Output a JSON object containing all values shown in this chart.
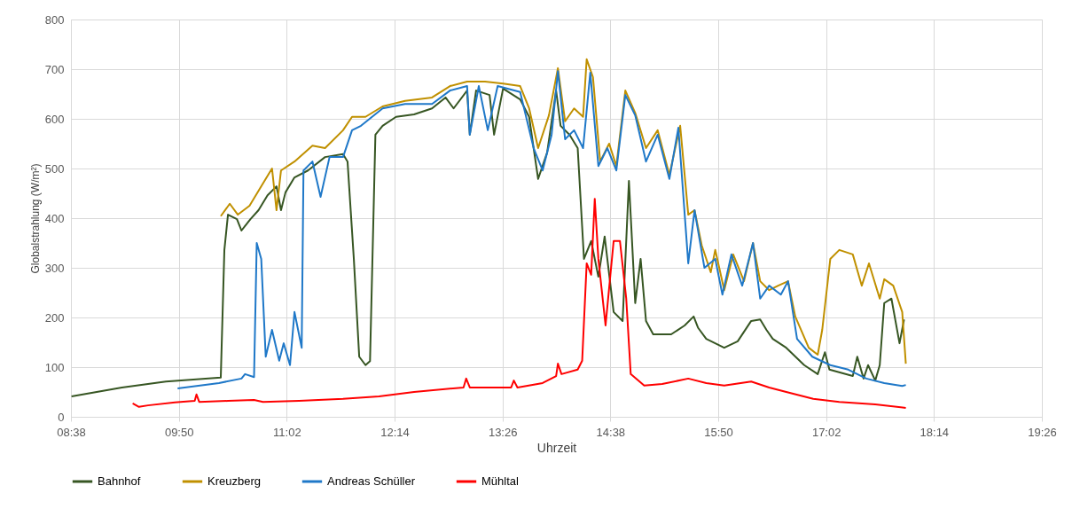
{
  "chart_data": {
    "type": "line",
    "xlabel": "Uhrzeit",
    "ylabel": "Globalstrahlung (W/m²)",
    "xlim": [
      8.6333,
      19.4333
    ],
    "xticks": [
      {
        "value": 8.6333,
        "label": "08:38"
      },
      {
        "value": 9.8333,
        "label": "09:50"
      },
      {
        "value": 11.0333,
        "label": "11:02"
      },
      {
        "value": 12.2333,
        "label": "12:14"
      },
      {
        "value": 13.4333,
        "label": "13:26"
      },
      {
        "value": 14.6333,
        "label": "14:38"
      },
      {
        "value": 15.8333,
        "label": "15:50"
      },
      {
        "value": 17.0333,
        "label": "17:02"
      },
      {
        "value": 18.2333,
        "label": "18:14"
      },
      {
        "value": 19.4333,
        "label": "19:26"
      }
    ],
    "ylim": [
      0,
      800
    ],
    "yticks": [
      0,
      100,
      200,
      300,
      400,
      500,
      600,
      700,
      800
    ],
    "grid": true,
    "legend": "bottom",
    "series": [
      {
        "name": "Bahnhof",
        "color": "#375623",
        "x": [
          8.64,
          9.2,
          9.69,
          10.3,
          10.34,
          10.38,
          10.48,
          10.53,
          10.63,
          10.72,
          10.82,
          10.92,
          10.97,
          11.02,
          11.12,
          11.27,
          11.46,
          11.66,
          11.71,
          11.78,
          11.84,
          11.91,
          11.96,
          12.02,
          12.1,
          12.25,
          12.45,
          12.65,
          12.8,
          12.89,
          13.04,
          13.07,
          13.14,
          13.29,
          13.34,
          13.44,
          13.63,
          13.73,
          13.78,
          13.83,
          13.93,
          14.03,
          14.08,
          14.18,
          14.27,
          14.34,
          14.42,
          14.5,
          14.57,
          14.67,
          14.77,
          14.84,
          14.91,
          14.97,
          15.03,
          15.11,
          15.31,
          15.46,
          15.56,
          15.61,
          15.7,
          15.9,
          16.05,
          16.2,
          16.3,
          16.37,
          16.44,
          16.59,
          16.79,
          16.94,
          17.02,
          17.07,
          17.33,
          17.38,
          17.45,
          17.5,
          17.58,
          17.63,
          17.68,
          17.76,
          17.85,
          17.9
        ],
        "values": [
          41,
          59,
          71,
          79,
          336,
          407,
          398,
          375,
          398,
          416,
          446,
          464,
          416,
          452,
          482,
          496,
          523,
          529,
          514,
          318,
          121,
          104,
          112,
          568,
          586,
          604,
          609,
          621,
          643,
          621,
          657,
          568,
          657,
          648,
          568,
          661,
          639,
          604,
          541,
          479,
          532,
          657,
          586,
          568,
          541,
          318,
          354,
          282,
          363,
          211,
          193,
          475,
          229,
          318,
          193,
          166,
          166,
          184,
          202,
          179,
          157,
          139,
          152,
          193,
          196,
          175,
          157,
          139,
          104,
          86,
          130,
          95,
          82,
          121,
          77,
          104,
          73,
          104,
          229,
          238,
          148,
          196
        ]
      },
      {
        "name": "Kreuzberg",
        "color": "#c09000",
        "x": [
          10.3,
          10.4,
          10.49,
          10.62,
          10.77,
          10.87,
          10.92,
          10.97,
          11.12,
          11.32,
          11.46,
          11.66,
          11.76,
          11.91,
          12.1,
          12.35,
          12.65,
          12.85,
          13.04,
          13.24,
          13.44,
          13.63,
          13.73,
          13.83,
          13.95,
          14.05,
          14.13,
          14.23,
          14.33,
          14.37,
          14.44,
          14.52,
          14.62,
          14.7,
          14.8,
          14.91,
          15.03,
          15.16,
          15.29,
          15.41,
          15.5,
          15.57,
          15.65,
          15.75,
          15.8,
          15.9,
          16.0,
          16.12,
          16.22,
          16.3,
          16.4,
          16.5,
          16.61,
          16.69,
          16.84,
          16.94,
          16.99,
          17.08,
          17.18,
          17.33,
          17.43,
          17.51,
          17.63,
          17.68,
          17.78,
          17.88,
          17.92
        ],
        "values": [
          404,
          429,
          407,
          425,
          470,
          500,
          416,
          496,
          514,
          546,
          541,
          577,
          604,
          604,
          625,
          636,
          643,
          666,
          675,
          675,
          671,
          666,
          621,
          541,
          607,
          702,
          595,
          621,
          604,
          720,
          684,
          514,
          550,
          505,
          657,
          612,
          541,
          577,
          487,
          586,
          407,
          416,
          345,
          291,
          336,
          255,
          327,
          273,
          350,
          273,
          255,
          264,
          273,
          202,
          139,
          125,
          175,
          318,
          336,
          327,
          264,
          309,
          238,
          277,
          264,
          211,
          107
        ]
      },
      {
        "name": "Andreas Schüller",
        "color": "#1f78c8",
        "x": [
          9.82,
          10.28,
          10.53,
          10.57,
          10.67,
          10.7,
          10.75,
          10.8,
          10.87,
          10.95,
          11.0,
          11.07,
          11.12,
          11.16,
          11.2,
          11.22,
          11.32,
          11.41,
          11.51,
          11.66,
          11.76,
          11.86,
          12.1,
          12.35,
          12.65,
          12.85,
          13.04,
          13.07,
          13.17,
          13.27,
          13.38,
          13.63,
          13.78,
          13.88,
          13.98,
          14.05,
          14.13,
          14.23,
          14.33,
          14.41,
          14.5,
          14.6,
          14.7,
          14.8,
          14.91,
          15.03,
          15.16,
          15.29,
          15.39,
          15.5,
          15.57,
          15.68,
          15.8,
          15.88,
          15.98,
          16.1,
          16.22,
          16.3,
          16.4,
          16.53,
          16.61,
          16.71,
          16.88,
          17.08,
          17.28,
          17.48,
          17.68,
          17.88,
          17.92
        ],
        "values": [
          57,
          68,
          77,
          86,
          80,
          350,
          318,
          121,
          175,
          113,
          148,
          104,
          211,
          175,
          139,
          496,
          514,
          443,
          523,
          523,
          577,
          586,
          621,
          630,
          630,
          657,
          666,
          568,
          666,
          577,
          666,
          654,
          541,
          496,
          568,
          696,
          559,
          577,
          541,
          693,
          505,
          541,
          496,
          648,
          607,
          514,
          568,
          479,
          582,
          309,
          416,
          300,
          318,
          246,
          327,
          264,
          350,
          238,
          264,
          246,
          273,
          157,
          121,
          104,
          95,
          77,
          68,
          62,
          64
        ]
      },
      {
        "name": "Mühltal",
        "color": "#ff0000",
        "x": [
          9.32,
          9.39,
          9.49,
          9.79,
          10.01,
          10.03,
          10.06,
          10.38,
          10.67,
          10.77,
          11.17,
          11.66,
          12.06,
          12.45,
          13.0,
          13.03,
          13.07,
          13.53,
          13.56,
          13.6,
          13.88,
          14.03,
          14.05,
          14.09,
          14.27,
          14.32,
          14.37,
          14.42,
          14.46,
          14.5,
          14.58,
          14.67,
          14.74,
          14.81,
          14.86,
          15.01,
          15.21,
          15.5,
          15.7,
          15.9,
          16.2,
          16.4,
          16.59,
          16.89,
          17.18,
          17.58,
          17.92
        ],
        "values": [
          27,
          20,
          23,
          29,
          32,
          45,
          30,
          32,
          34,
          30,
          32,
          36,
          41,
          50,
          59,
          77,
          59,
          59,
          73,
          59,
          68,
          82,
          107,
          86,
          95,
          113,
          309,
          286,
          439,
          318,
          184,
          354,
          354,
          238,
          86,
          63,
          66,
          77,
          68,
          63,
          71,
          59,
          50,
          36,
          30,
          25,
          18
        ]
      }
    ]
  }
}
